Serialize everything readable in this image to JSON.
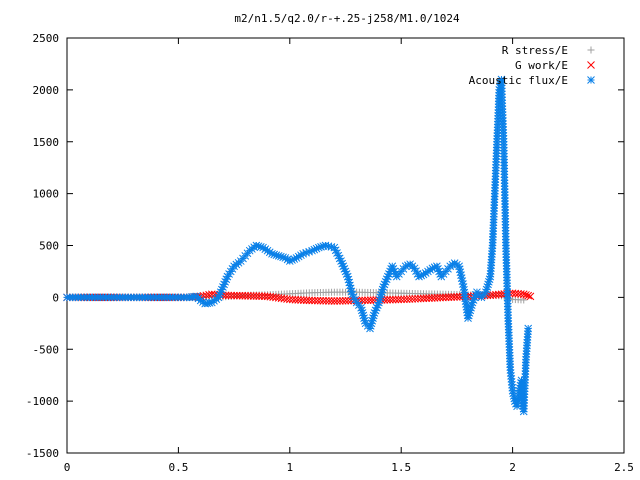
{
  "chart_data": {
    "type": "scatter",
    "title": "m2/n1.5/q2.0/r-+.25-j258/M1.0/1024",
    "xlabel": "",
    "ylabel": "",
    "xlim": [
      0,
      2.5
    ],
    "ylim": [
      -1500,
      2500
    ],
    "grid": false,
    "legend_position": "top-right",
    "x_ticks": [
      "0",
      "0.5",
      "1",
      "1.5",
      "2",
      "2.5"
    ],
    "y_ticks": [
      "2500",
      "2000",
      "1500",
      "1000",
      "500",
      "0",
      "-500",
      "-1000",
      "-1500"
    ],
    "x_tick_values": [
      0,
      0.5,
      1,
      1.5,
      2,
      2.5
    ],
    "y_tick_values": [
      2500,
      2000,
      1500,
      1000,
      500,
      0,
      -500,
      -1000,
      -1500
    ],
    "series": [
      {
        "name": "R stress/E",
        "color": "#a0a0a0",
        "marker": "plus",
        "x": [
          0.0,
          0.3,
          0.55,
          0.7,
          0.8,
          0.9,
          1.0,
          1.1,
          1.2,
          1.3,
          1.4,
          1.5,
          1.6,
          1.7,
          1.8,
          1.9,
          1.95,
          2.0,
          2.05
        ],
        "y": [
          0,
          0,
          0,
          5,
          20,
          25,
          35,
          45,
          50,
          50,
          45,
          40,
          35,
          30,
          25,
          20,
          15,
          -20,
          -25
        ]
      },
      {
        "name": "G work/E",
        "color": "#ff0000",
        "marker": "cross",
        "x": [
          0.0,
          0.3,
          0.55,
          0.6,
          0.65,
          0.7,
          0.8,
          0.9,
          1.0,
          1.1,
          1.2,
          1.3,
          1.4,
          1.5,
          1.6,
          1.7,
          1.8,
          1.9,
          1.95,
          2.0,
          2.05,
          2.08
        ],
        "y": [
          0,
          0,
          0,
          10,
          30,
          20,
          15,
          10,
          -20,
          -30,
          -35,
          -30,
          -25,
          -20,
          -10,
          0,
          10,
          20,
          30,
          40,
          30,
          10
        ]
      },
      {
        "name": "Acoustic flux/E",
        "color": "#0a80e8",
        "marker": "star",
        "x": [
          0.0,
          0.1,
          0.2,
          0.3,
          0.4,
          0.5,
          0.55,
          0.58,
          0.6,
          0.62,
          0.65,
          0.68,
          0.7,
          0.72,
          0.75,
          0.78,
          0.8,
          0.82,
          0.85,
          0.88,
          0.9,
          0.92,
          0.95,
          0.98,
          1.0,
          1.03,
          1.06,
          1.1,
          1.13,
          1.16,
          1.2,
          1.23,
          1.26,
          1.28,
          1.3,
          1.32,
          1.34,
          1.36,
          1.38,
          1.4,
          1.42,
          1.44,
          1.46,
          1.48,
          1.5,
          1.52,
          1.54,
          1.56,
          1.58,
          1.6,
          1.62,
          1.64,
          1.66,
          1.68,
          1.7,
          1.72,
          1.74,
          1.76,
          1.78,
          1.8,
          1.82,
          1.84,
          1.86,
          1.88,
          1.9,
          1.91,
          1.92,
          1.93,
          1.94,
          1.95,
          1.96,
          1.97,
          1.98,
          1.99,
          2.0,
          2.01,
          2.02,
          2.03,
          2.04,
          2.05,
          2.06,
          2.07
        ],
        "y": [
          0,
          0,
          0,
          0,
          0,
          0,
          0,
          10,
          -30,
          -60,
          -50,
          0,
          100,
          200,
          300,
          350,
          400,
          450,
          500,
          480,
          450,
          420,
          400,
          380,
          350,
          380,
          420,
          450,
          480,
          500,
          480,
          350,
          200,
          30,
          -50,
          -100,
          -250,
          -300,
          -150,
          -50,
          100,
          200,
          300,
          200,
          250,
          300,
          320,
          280,
          200,
          220,
          250,
          280,
          300,
          200,
          250,
          300,
          330,
          300,
          100,
          -200,
          -50,
          50,
          0,
          50,
          200,
          500,
          1000,
          1500,
          2000,
          2100,
          1500,
          500,
          -200,
          -700,
          -900,
          -1000,
          -1050,
          -900,
          -800,
          -1100,
          -600,
          -300
        ]
      }
    ]
  }
}
